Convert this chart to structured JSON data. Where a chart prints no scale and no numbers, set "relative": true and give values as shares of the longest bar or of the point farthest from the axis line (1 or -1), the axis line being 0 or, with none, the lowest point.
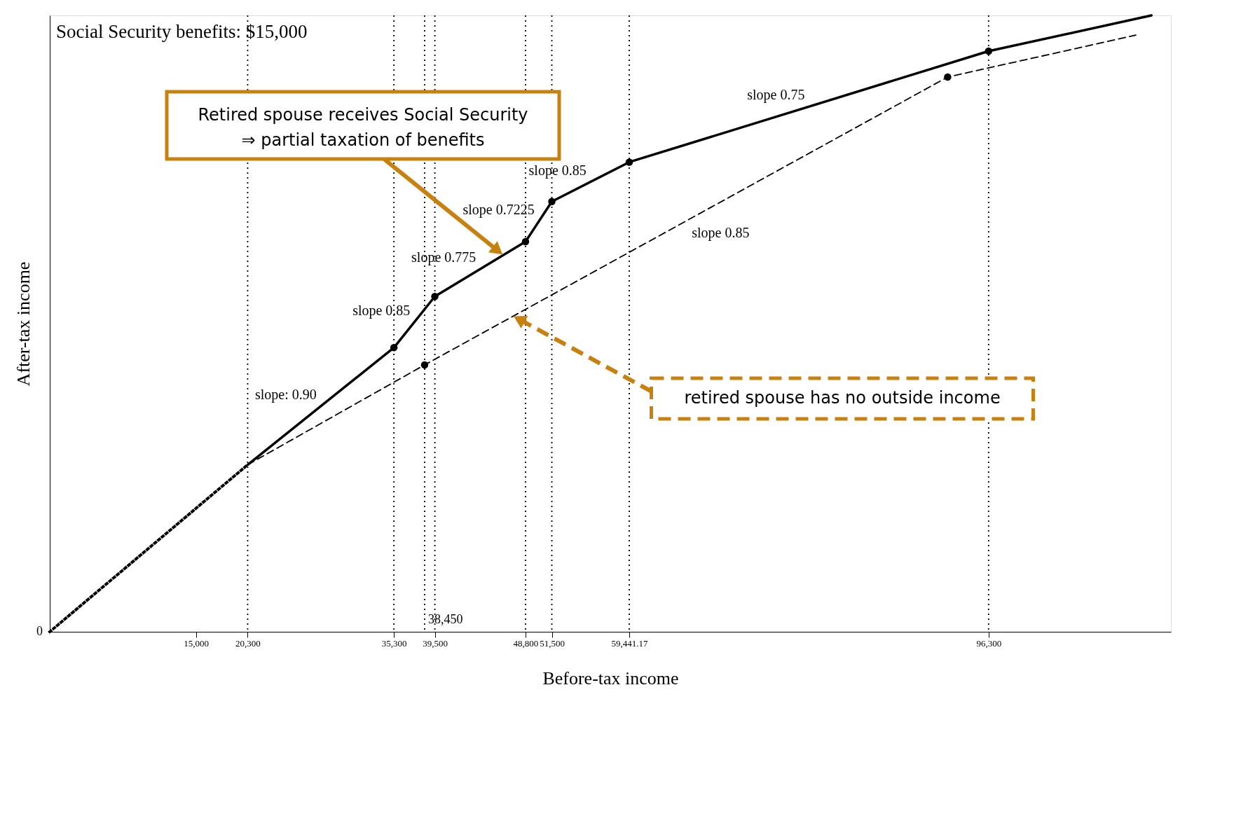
{
  "chart_data": {
    "type": "line",
    "title": "Social Security benefits: $15,000",
    "xlabel": "Before-tax income",
    "ylabel": "After-tax income",
    "relative": true,
    "series": [
      {
        "color": "#000000",
        "line_style": "dotted",
        "x": [
          0,
          20300
        ],
        "values": [
          0,
          0.271
        ]
      },
      {
        "color": "#000000",
        "line_style": "solid",
        "x": [
          20300,
          35300,
          39500,
          48800,
          51500,
          59441.17,
          96300,
          113000
        ],
        "values": [
          0.271,
          0.461,
          0.544,
          0.633,
          0.698,
          0.762,
          0.942,
          1.0
        ]
      },
      {
        "color": "#000000",
        "line_style": "dashed",
        "x": [
          20300,
          38450,
          92100,
          111400
        ],
        "values": [
          0.271,
          0.433,
          0.9,
          0.968
        ]
      },
      {
        "type": "scatter",
        "color": "#000000",
        "marker": "circle",
        "x": [
          35300,
          38450,
          39500,
          48800,
          51500,
          59441.17,
          92100,
          96300
        ],
        "values": [
          0.461,
          0.433,
          0.544,
          0.633,
          0.698,
          0.762,
          0.9,
          0.942
        ]
      }
    ],
    "xlim": [
      0,
      115000
    ],
    "xticks": [
      {
        "value": 15000,
        "label": "15,000"
      },
      {
        "value": 20300,
        "label": "20,300"
      },
      {
        "value": 35300,
        "label": "35,300"
      },
      {
        "value": 39500,
        "label": "39,500"
      },
      {
        "value": 48800,
        "label": "48,800"
      },
      {
        "value": 51500,
        "label": "51,500"
      },
      {
        "value": 59441.17,
        "label": "59,441.17"
      },
      {
        "value": 96300,
        "label": "96,300"
      }
    ],
    "ref_lines": [
      {
        "axis": "x",
        "value": 20300,
        "line_style": "dotted",
        "color": "#000000"
      },
      {
        "axis": "x",
        "value": 35300,
        "line_style": "dotted",
        "color": "#000000"
      },
      {
        "axis": "x",
        "value": 38450,
        "line_style": "dotted",
        "color": "#000000"
      },
      {
        "axis": "x",
        "value": 39500,
        "line_style": "dotted",
        "color": "#000000"
      },
      {
        "axis": "x",
        "value": 48800,
        "line_style": "dotted",
        "color": "#000000"
      },
      {
        "axis": "x",
        "value": 51500,
        "line_style": "dotted",
        "color": "#000000"
      },
      {
        "axis": "x",
        "value": 59441.17,
        "line_style": "dotted",
        "color": "#000000"
      },
      {
        "axis": "x",
        "value": 96300,
        "line_style": "dotted",
        "color": "#000000"
      }
    ],
    "annotations": [
      {
        "text": "0",
        "x": 0,
        "y": 0
      },
      {
        "text": "slope: 0.90",
        "x": 27800,
        "y": 0.366
      },
      {
        "text": "slope 0.85",
        "x": 37400,
        "y": 0.5025
      },
      {
        "text": "slope 0.775",
        "x": 44150,
        "y": 0.5885
      },
      {
        "text": "slope 0.7225",
        "x": 50150,
        "y": 0.6655
      },
      {
        "text": "slope 0.85",
        "x": 55470,
        "y": 0.73
      },
      {
        "text": "slope 0.75",
        "x": 77870,
        "y": 0.852
      },
      {
        "text": "slope 0.85",
        "x": 65275,
        "y": 0.6665
      },
      {
        "text": "38,450",
        "x": 38450,
        "y": 0
      },
      "Retired spouse receives Social Security\n⇒ partial taxation of benefits",
      "retired spouse has no outside income"
    ],
    "grid": false
  }
}
